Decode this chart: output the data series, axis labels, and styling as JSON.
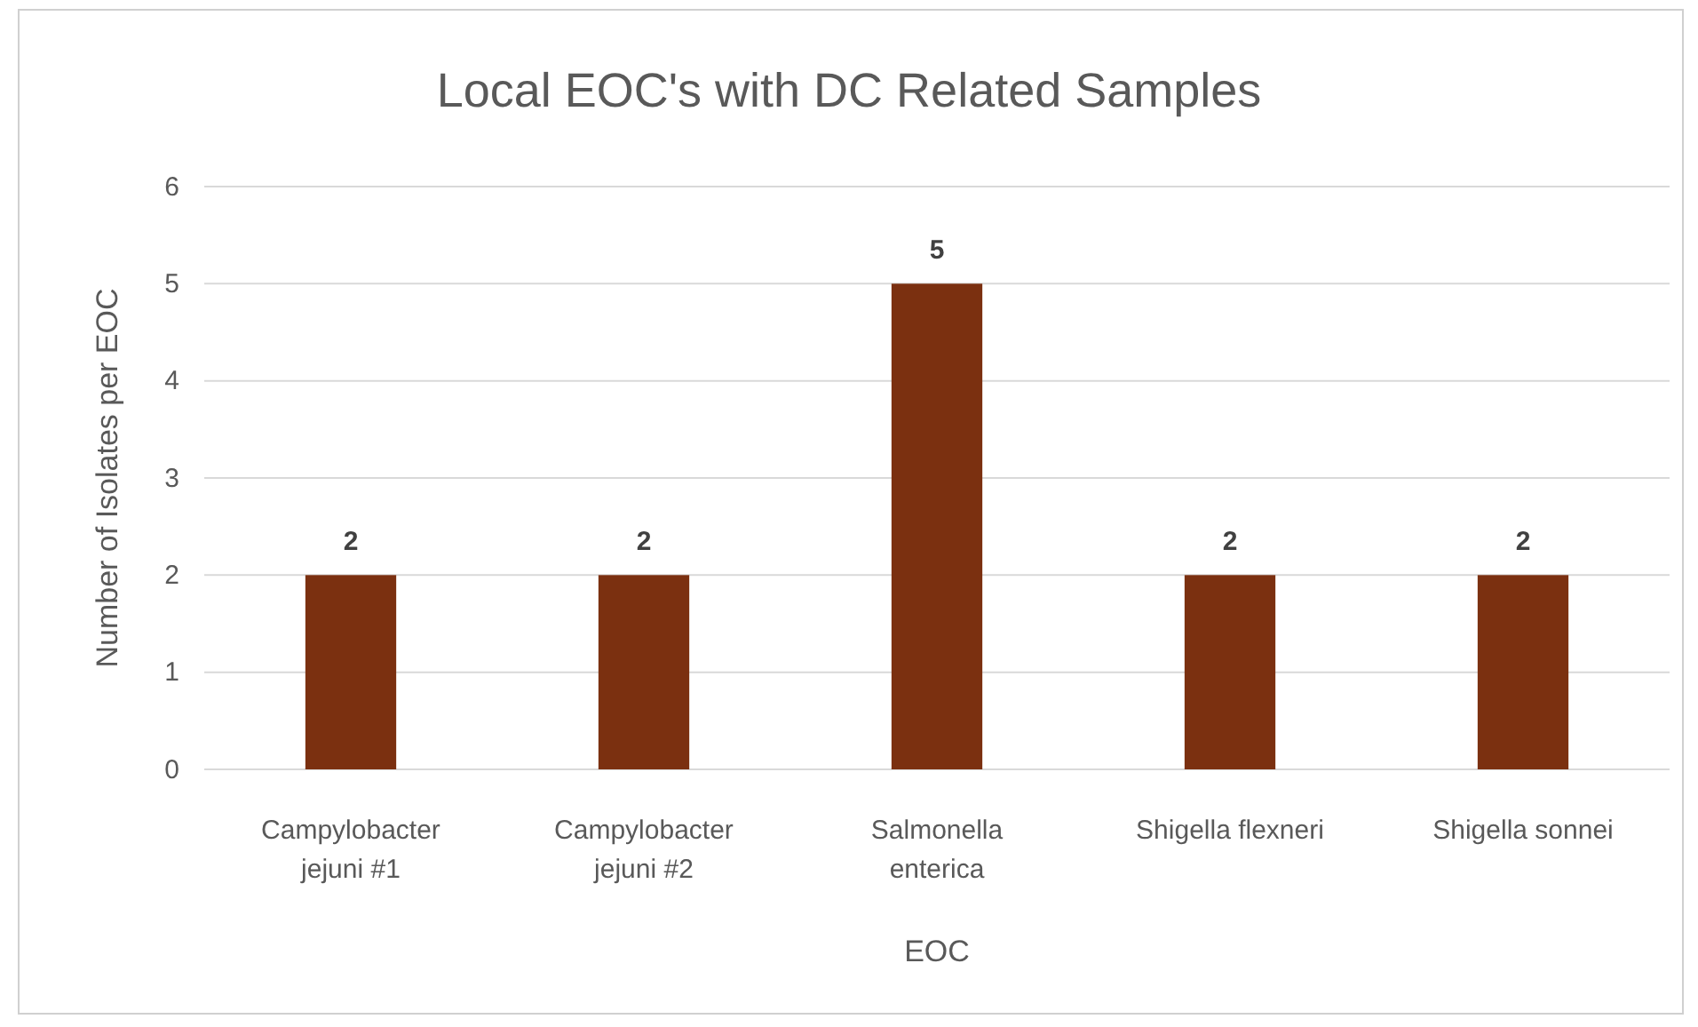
{
  "chart_data": {
    "type": "bar",
    "title": "Local EOC's with DC Related Samples",
    "xlabel": "EOC",
    "ylabel": "Number of Isolates per EOC",
    "categories": [
      "Campylobacter jejuni #1",
      "Campylobacter jejuni #2",
      "Salmonella enterica",
      "Shigella flexneri",
      "Shigella sonnei"
    ],
    "values": [
      2,
      2,
      5,
      2,
      2
    ],
    "color": "#7b3010",
    "ylim": [
      0,
      6
    ],
    "yticks": [
      0,
      1,
      2,
      3,
      4,
      5,
      6
    ],
    "grid": "y",
    "data_labels": true
  }
}
